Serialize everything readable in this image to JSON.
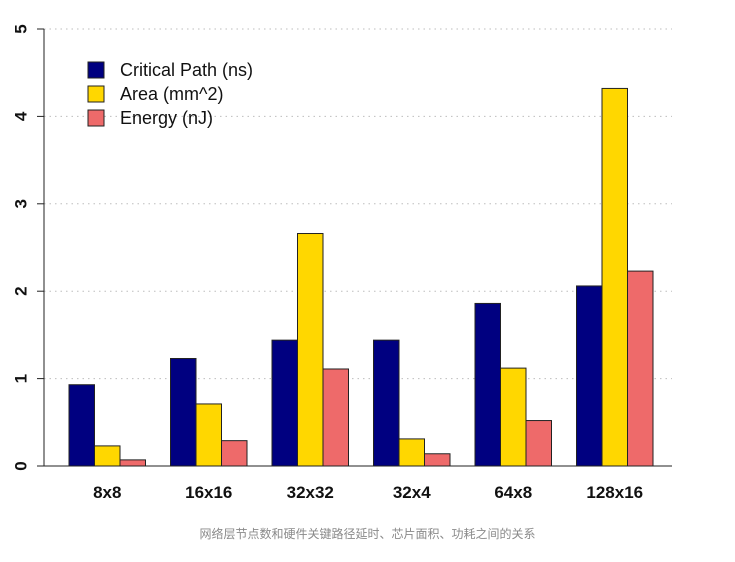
{
  "chart_data": {
    "type": "bar",
    "categories": [
      "8x8",
      "16x16",
      "32x32",
      "32x4",
      "64x8",
      "128x16"
    ],
    "series": [
      {
        "name": "Critical Path (ns)",
        "color": "#000080",
        "values": [
          0.93,
          1.23,
          1.44,
          1.44,
          1.86,
          2.06
        ]
      },
      {
        "name": "Area (mm^2)",
        "color": "#FFD700",
        "values": [
          0.23,
          0.71,
          2.66,
          0.31,
          1.12,
          4.32
        ]
      },
      {
        "name": "Energy (nJ)",
        "color": "#EE6A6A",
        "values": [
          0.07,
          0.29,
          1.11,
          0.14,
          0.52,
          2.23
        ]
      }
    ],
    "ylim": [
      0,
      5
    ],
    "yticks": [
      "0",
      "1",
      "2",
      "3",
      "4",
      "5"
    ],
    "grid": true,
    "legend_position": "top-left"
  },
  "caption": "网络层节点数和硬件关键路径延时、芯片面积、功耗之间的关系"
}
